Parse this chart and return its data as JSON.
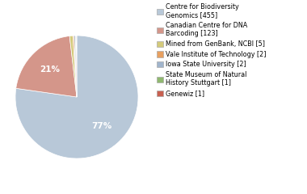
{
  "labels": [
    "Centre for Biodiversity\nGenomics [455]",
    "Canadian Centre for DNA\nBarcoding [123]",
    "Mined from GenBank, NCBI [5]",
    "Vale Institute of Technology [2]",
    "Iowa State University [2]",
    "State Museum of Natural\nHistory Stuttgart [1]",
    "Genewiz [1]"
  ],
  "values": [
    455,
    123,
    5,
    2,
    2,
    1,
    1
  ],
  "colors": [
    "#b8c8d8",
    "#d4968a",
    "#d4ca7a",
    "#e8a060",
    "#a0b4cc",
    "#90b870",
    "#c86050"
  ],
  "autopct_threshold": 3,
  "text_color": "white",
  "figsize": [
    3.8,
    2.4
  ],
  "dpi": 100
}
